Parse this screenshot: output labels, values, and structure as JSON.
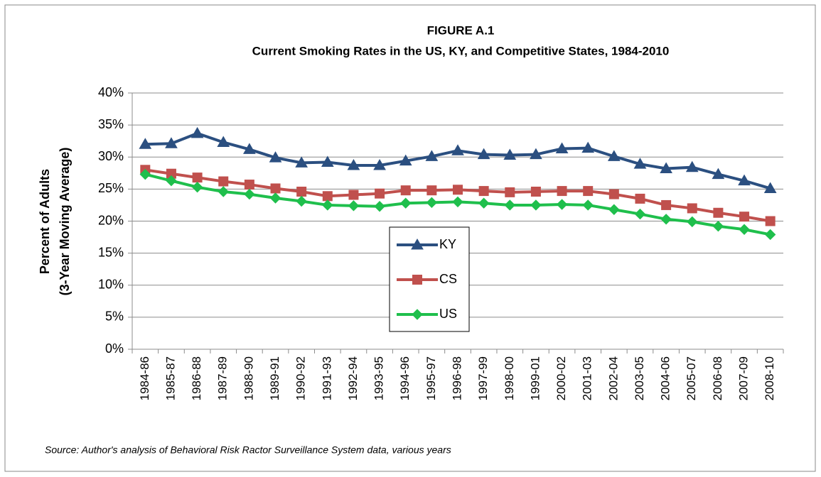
{
  "chart_data": {
    "type": "line",
    "title": "FIGURE A.1",
    "subtitle": "Current Smoking Rates in the US, KY, and Competitive States, 1984-2010",
    "ylabel": [
      "Percent of Adults",
      "(3-Year Moving Average)"
    ],
    "source": "Source: Author's analysis of Behavioral Risk Ractor Surveillance System data, various years",
    "categories": [
      "1984-86",
      "1985-87",
      "1986-88",
      "1987-89",
      "1988-90",
      "1989-91",
      "1990-92",
      "1991-93",
      "1992-94",
      "1993-95",
      "1994-96",
      "1995-97",
      "1996-98",
      "1997-99",
      "1998-00",
      "1999-01",
      "2000-02",
      "2001-03",
      "2002-04",
      "2003-05",
      "2004-06",
      "2005-07",
      "2006-08",
      "2007-09",
      "2008-10"
    ],
    "series": [
      {
        "name": "KY",
        "color": "#2b4f80",
        "marker": "triangle",
        "values": [
          32.0,
          32.1,
          33.7,
          32.3,
          31.2,
          29.9,
          29.1,
          29.2,
          28.7,
          28.7,
          29.4,
          30.1,
          31.0,
          30.4,
          30.3,
          30.4,
          31.3,
          31.4,
          30.1,
          28.9,
          28.2,
          28.4,
          27.3,
          26.3,
          25.1
        ]
      },
      {
        "name": "CS",
        "color": "#c0504d",
        "marker": "square",
        "values": [
          28.0,
          27.4,
          26.8,
          26.2,
          25.7,
          25.1,
          24.6,
          23.9,
          24.1,
          24.3,
          24.8,
          24.8,
          24.9,
          24.7,
          24.5,
          24.6,
          24.7,
          24.7,
          24.2,
          23.5,
          22.5,
          22.0,
          21.3,
          20.7,
          20.0
        ]
      },
      {
        "name": "US",
        "color": "#1fbf4c",
        "marker": "diamond",
        "values": [
          27.3,
          26.3,
          25.3,
          24.6,
          24.2,
          23.6,
          23.1,
          22.5,
          22.4,
          22.3,
          22.8,
          22.9,
          23.0,
          22.8,
          22.5,
          22.5,
          22.6,
          22.5,
          21.8,
          21.1,
          20.3,
          19.9,
          19.2,
          18.7,
          17.9
        ]
      }
    ],
    "ylim": [
      0,
      40
    ],
    "yticks": [
      {
        "value": 0,
        "label": "0%"
      },
      {
        "value": 5,
        "label": "5%"
      },
      {
        "value": 10,
        "label": "10%"
      },
      {
        "value": 15,
        "label": "15%"
      },
      {
        "value": 20,
        "label": "20%"
      },
      {
        "value": 25,
        "label": "25%"
      },
      {
        "value": 30,
        "label": "30%"
      },
      {
        "value": 35,
        "label": "35%"
      },
      {
        "value": 40,
        "label": "40%"
      }
    ],
    "grid": true,
    "legend": "center"
  }
}
